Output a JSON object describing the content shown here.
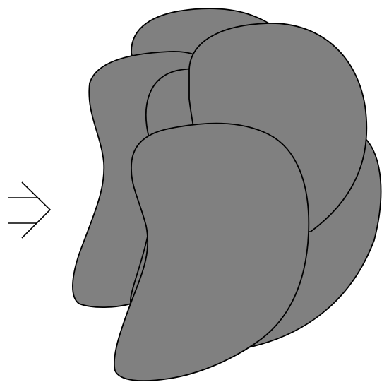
{
  "colors": {
    "background": "#ffffff",
    "shape_fill": "#808080",
    "stroke": "#000000"
  },
  "diagram": {
    "arrow": {
      "icon": "double-arrow-right-icon"
    },
    "blobs": [
      {
        "name": "blob-back-top"
      },
      {
        "name": "blob-back-left"
      },
      {
        "name": "blob-middle-left"
      },
      {
        "name": "blob-back-right"
      },
      {
        "name": "blob-right"
      },
      {
        "name": "blob-front-bottom"
      },
      {
        "name": "blob-front"
      }
    ]
  }
}
